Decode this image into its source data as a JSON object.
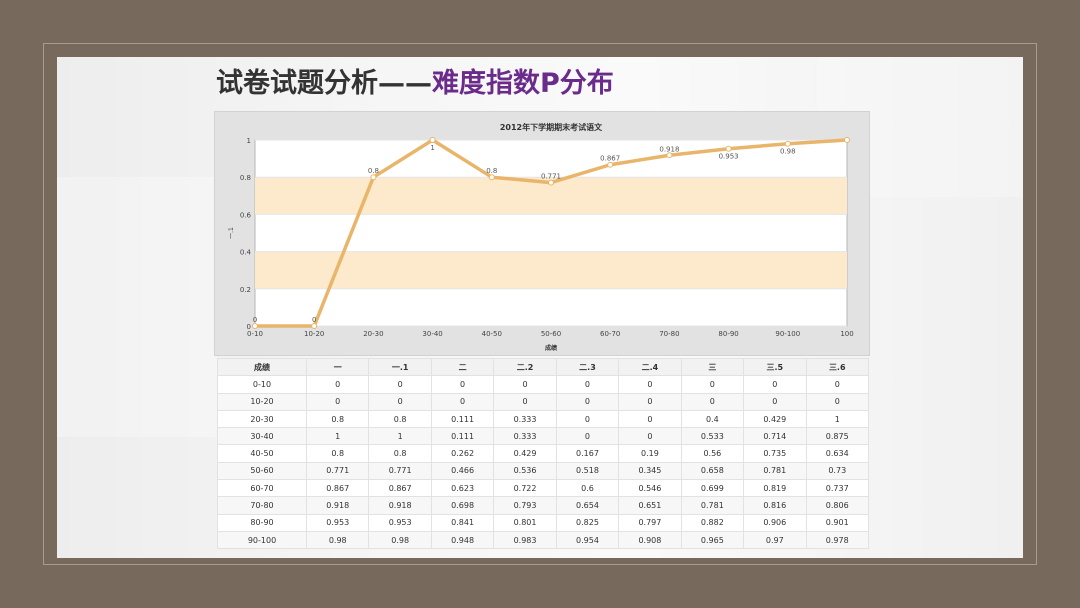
{
  "slide": {
    "title_main": "试卷试题分析——",
    "title_highlight": "难度指数P分布"
  },
  "colors": {
    "background": "#77695b",
    "line": "#e8b56a",
    "band": "#fde9cc",
    "title_highlight": "#6a2b8a"
  },
  "chart_data": {
    "type": "line",
    "title": "2012年下学期期末考试语文",
    "xlabel": "成绩",
    "ylabel": "一.1",
    "ylim": [
      0,
      1
    ],
    "yticks": [
      0,
      0.2,
      0.4,
      0.6,
      0.8,
      1
    ],
    "bands": [
      [
        0.2,
        0.4
      ],
      [
        0.6,
        0.8
      ]
    ],
    "categories": [
      "0-10",
      "10-20",
      "20-30",
      "30-40",
      "40-50",
      "50-60",
      "60-70",
      "70-80",
      "80-90",
      "90-100",
      "100"
    ],
    "series": [
      {
        "values": [
          0,
          0,
          0.8,
          1,
          0.8,
          0.771,
          0.867,
          0.918,
          0.953,
          0.98,
          1
        ],
        "labels": [
          "0",
          "0",
          "0.8",
          "1",
          "0.8",
          "0.771",
          "0.867",
          "0.918",
          "0.953",
          "0.98",
          ""
        ]
      }
    ]
  },
  "table": {
    "headers": [
      "成绩",
      "一",
      "一.1",
      "二",
      "二.2",
      "二.3",
      "二.4",
      "三",
      "三.5",
      "三.6"
    ],
    "rows": [
      [
        "0-10",
        "0",
        "0",
        "0",
        "0",
        "0",
        "0",
        "0",
        "0",
        "0"
      ],
      [
        "10-20",
        "0",
        "0",
        "0",
        "0",
        "0",
        "0",
        "0",
        "0",
        "0"
      ],
      [
        "20-30",
        "0.8",
        "0.8",
        "0.111",
        "0.333",
        "0",
        "0",
        "0.4",
        "0.429",
        "1"
      ],
      [
        "30-40",
        "1",
        "1",
        "0.111",
        "0.333",
        "0",
        "0",
        "0.533",
        "0.714",
        "0.875"
      ],
      [
        "40-50",
        "0.8",
        "0.8",
        "0.262",
        "0.429",
        "0.167",
        "0.19",
        "0.56",
        "0.735",
        "0.634"
      ],
      [
        "50-60",
        "0.771",
        "0.771",
        "0.466",
        "0.536",
        "0.518",
        "0.345",
        "0.658",
        "0.781",
        "0.73"
      ],
      [
        "60-70",
        "0.867",
        "0.867",
        "0.623",
        "0.722",
        "0.6",
        "0.546",
        "0.699",
        "0.819",
        "0.737"
      ],
      [
        "70-80",
        "0.918",
        "0.918",
        "0.698",
        "0.793",
        "0.654",
        "0.651",
        "0.781",
        "0.816",
        "0.806"
      ],
      [
        "80-90",
        "0.953",
        "0.953",
        "0.841",
        "0.801",
        "0.825",
        "0.797",
        "0.882",
        "0.906",
        "0.901"
      ],
      [
        "90-100",
        "0.98",
        "0.98",
        "0.948",
        "0.983",
        "0.954",
        "0.908",
        "0.965",
        "0.97",
        "0.978"
      ]
    ]
  }
}
